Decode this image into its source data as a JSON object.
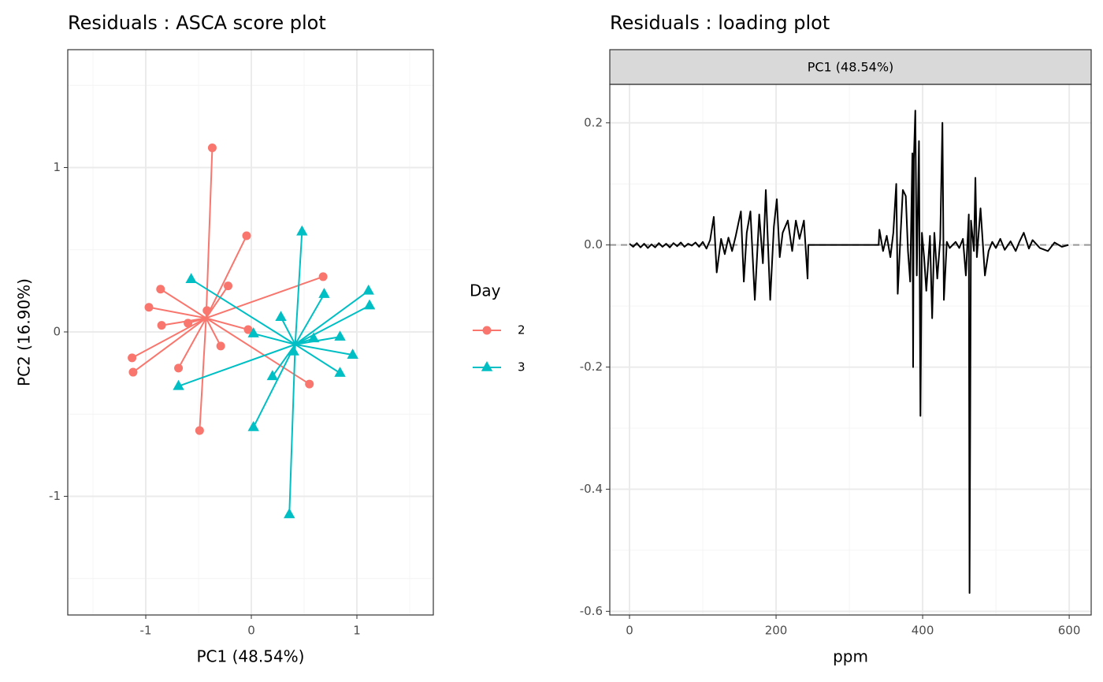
{
  "chart_data": [
    {
      "type": "scatter",
      "title": "Residuals : ASCA score plot",
      "x_label": "PC1 (48.54%)",
      "y_label": "PC2 (16.90%)",
      "legend_title": "Day",
      "xlim": [
        -1.739,
        1.724
      ],
      "ylim": [
        -1.722,
        1.717
      ],
      "xticks": [
        -1,
        0,
        1
      ],
      "yticks": [
        -1,
        0,
        1
      ],
      "grid": true,
      "series": [
        {
          "name": "2",
          "color": "#F8766D",
          "marker": "circle",
          "x": [
            -0.37,
            -0.045,
            0.68,
            -0.86,
            -0.22,
            -0.97,
            -0.42,
            -0.85,
            -0.6,
            -0.03,
            -0.29,
            -1.13,
            -1.12,
            -0.69,
            0.55,
            -0.49
          ],
          "values": [
            1.12,
            0.585,
            0.336,
            0.26,
            0.28,
            0.15,
            0.13,
            0.04,
            0.053,
            0.014,
            -0.086,
            -0.158,
            -0.245,
            -0.22,
            -0.317,
            -0.6
          ]
        },
        {
          "name": "3",
          "color": "#00BFC4",
          "marker": "triangle",
          "x": [
            0.48,
            -0.57,
            1.11,
            0.69,
            1.12,
            0.28,
            0.02,
            0.59,
            0.84,
            0.96,
            0.4,
            0.84,
            0.2,
            -0.69,
            0.02,
            0.36
          ],
          "values": [
            0.61,
            0.32,
            0.25,
            0.23,
            0.16,
            0.09,
            -0.01,
            -0.04,
            -0.03,
            -0.14,
            -0.12,
            -0.25,
            -0.27,
            -0.33,
            -0.58,
            -1.11
          ]
        }
      ]
    },
    {
      "type": "line",
      "title": "Residuals : loading plot",
      "strip": "PC1 (48.54%)",
      "x_label": "ppm",
      "color": "#000000",
      "xlim": [
        -26.9,
        630
      ],
      "ylim": [
        -0.606,
        0.263
      ],
      "xticks": [
        0,
        200,
        400,
        600
      ],
      "yticks": [
        -0.6,
        -0.4,
        -0.2,
        {
          "value": 0,
          "label": "0.0"
        },
        0.2
      ],
      "grid": true,
      "x": [
        0,
        5,
        10,
        15,
        20,
        25,
        30,
        35,
        40,
        45,
        50,
        55,
        60,
        65,
        70,
        75,
        80,
        85,
        90,
        95,
        100,
        105,
        110,
        115,
        119,
        125,
        130,
        135,
        140,
        145,
        152,
        156,
        160,
        165,
        171,
        177,
        182,
        186,
        192,
        197,
        201,
        205,
        209,
        216,
        222,
        227,
        232,
        238,
        243,
        244,
        250,
        300,
        340,
        341,
        346,
        351,
        356,
        360,
        364,
        366,
        370,
        373,
        377,
        380,
        383,
        386,
        387,
        388,
        390,
        392,
        395,
        397,
        399,
        402,
        405,
        410,
        413,
        416,
        420,
        424,
        427,
        429,
        433,
        437,
        445,
        450,
        455,
        459,
        463,
        464,
        466,
        470,
        472,
        474,
        479,
        485,
        490,
        495,
        500,
        506,
        512,
        520,
        527,
        532,
        538,
        545,
        550,
        560,
        571,
        580,
        590,
        599
      ],
      "values": [
        0.002,
        -0.003,
        0.003,
        -0.004,
        0.002,
        -0.005,
        0.001,
        -0.004,
        0.003,
        -0.003,
        0.002,
        -0.004,
        0.003,
        -0.002,
        0.004,
        -0.003,
        0.002,
        -0.001,
        0.004,
        -0.003,
        0.005,
        -0.006,
        0.008,
        0.046,
        -0.045,
        0.01,
        -0.015,
        0.012,
        -0.01,
        0.015,
        0.055,
        -0.06,
        0.02,
        0.055,
        -0.09,
        0.05,
        -0.03,
        0.09,
        -0.09,
        0.03,
        0.075,
        -0.02,
        0.02,
        0.04,
        -0.01,
        0.04,
        0.01,
        0.04,
        -0.055,
        0,
        0,
        0,
        0,
        0.025,
        -0.01,
        0.015,
        -0.02,
        0.02,
        0.1,
        -0.08,
        0.02,
        0.09,
        0.08,
        -0.01,
        -0.06,
        0.15,
        -0.2,
        0.14,
        0.22,
        -0.05,
        0.17,
        -0.28,
        0.02,
        -0.02,
        -0.075,
        0.015,
        -0.12,
        0.02,
        -0.055,
        0.01,
        0.2,
        -0.09,
        0.005,
        -0.005,
        0.005,
        -0.005,
        0.01,
        -0.05,
        0.05,
        -0.57,
        0.04,
        -0.01,
        0.11,
        -0.02,
        0.06,
        -0.05,
        -0.01,
        0.005,
        -0.005,
        0.01,
        -0.008,
        0.006,
        -0.01,
        0.005,
        0.02,
        -0.006,
        0.008,
        -0.005,
        -0.01,
        0.004,
        -0.003,
        0
      ]
    }
  ]
}
